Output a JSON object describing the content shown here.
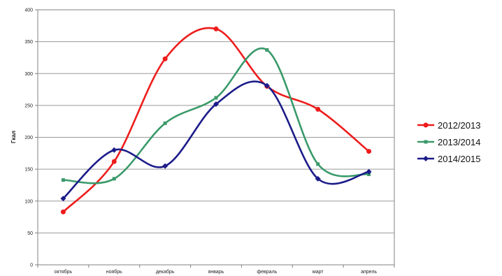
{
  "chart_data": {
    "type": "line",
    "title": "",
    "xlabel": "",
    "ylabel": "Гкал",
    "ylim": [
      0,
      400
    ],
    "yticks": [
      "0",
      "50",
      "100",
      "150",
      "200",
      "250",
      "300",
      "350",
      "400"
    ],
    "categories": [
      "октябрь",
      "ноябрь",
      "декабрь",
      "январь",
      "февраль",
      "март",
      "апрель"
    ],
    "grid": true,
    "legend_position": "right",
    "series": [
      {
        "name": "2012/2013",
        "color": "#ee1c1c",
        "values": [
          83,
          162,
          323,
          370,
          280,
          244,
          178
        ]
      },
      {
        "name": "2013/2014",
        "color": "#3a9a6a",
        "values": [
          133,
          135,
          222,
          262,
          337,
          158,
          142
        ]
      },
      {
        "name": "2014/2015",
        "color": "#1c1c8a",
        "values": [
          104,
          180,
          155,
          252,
          281,
          135,
          146
        ]
      }
    ]
  }
}
